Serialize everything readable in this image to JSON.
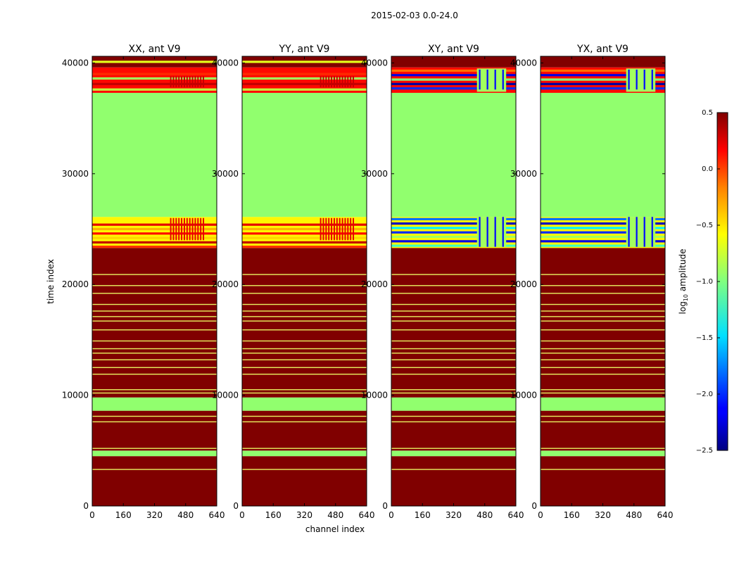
{
  "suptitle": "2015-02-03 0.0-24.0",
  "colors": {
    "dark_red": "#800000",
    "green": "#80ff80",
    "orange_red": "#ff4400",
    "yellow": "#e8f000",
    "blue": "#0018ff",
    "dark_blue": "#000080",
    "cyan": "#40ffc8"
  },
  "chart_data": {
    "type": "heatmap",
    "panels": [
      {
        "title": "XX, ant V9",
        "kind": "auto"
      },
      {
        "title": "YY, ant V9",
        "kind": "auto"
      },
      {
        "title": "XY, ant V9",
        "kind": "cross"
      },
      {
        "title": "YX, ant V9",
        "kind": "cross"
      }
    ],
    "xlabel": "channel index",
    "ylabel": "time index",
    "xlim": [
      0,
      640
    ],
    "ylim": [
      0,
      40600
    ],
    "xticks": [
      0,
      160,
      320,
      480,
      640
    ],
    "yticks": [
      0,
      10000,
      20000,
      30000,
      40000
    ],
    "xtick_labels": [
      "0",
      "160",
      "320",
      "480",
      "640"
    ],
    "ytick_labels": [
      "0",
      "10000",
      "20000",
      "30000",
      "40000"
    ],
    "colorbar": {
      "label_prefix": "log",
      "label_sub": "10",
      "label_suffix": " amplitude",
      "vmin": -2.5,
      "vmax": 0.5,
      "ticks": [
        0.5,
        0.0,
        -0.5,
        -1.0,
        -1.5,
        -2.0,
        -2.5
      ],
      "tick_labels": [
        "0.5",
        "0.0",
        "−0.5",
        "−1.0",
        "−1.5",
        "−2.0",
        "−2.5"
      ],
      "colormap": "jet"
    },
    "base_bands": [
      {
        "from": 0,
        "to": 4500,
        "value": 0.5
      },
      {
        "from": 4500,
        "to": 5000,
        "value": -0.95
      },
      {
        "from": 5000,
        "to": 8600,
        "value": 0.5
      },
      {
        "from": 8600,
        "to": 9800,
        "value": -0.95
      },
      {
        "from": 9800,
        "to": 23300,
        "value": 0.5
      },
      {
        "from": 23300,
        "to": 26100,
        "value": -0.6
      },
      {
        "from": 26100,
        "to": 37300,
        "value": -0.95
      },
      {
        "from": 37300,
        "to": 39600,
        "value": 0.1
      },
      {
        "from": 39600,
        "to": 40600,
        "value": 0.5
      }
    ],
    "thin_lines_time": [
      3300,
      5200,
      7600,
      8100,
      10200,
      10500,
      11900,
      12500,
      13200,
      13800,
      14200,
      14900,
      15900,
      16700,
      17100,
      17600,
      18200,
      19200,
      19900,
      20900
    ],
    "auto_stripes": [
      {
        "t": 23400,
        "value": 0.0
      },
      {
        "t": 23800,
        "value": 0.3
      },
      {
        "t": 24200,
        "value": -0.5
      },
      {
        "t": 24600,
        "value": 0.1
      },
      {
        "t": 25000,
        "value": -0.4
      },
      {
        "t": 25400,
        "value": 0.2
      },
      {
        "t": 37600,
        "value": -0.8
      },
      {
        "t": 38100,
        "value": 0.3
      },
      {
        "t": 38600,
        "value": -0.9
      },
      {
        "t": 39000,
        "value": 0.0
      },
      {
        "t": 40100,
        "value": -0.7
      }
    ],
    "cross_stripes": [
      {
        "t": 23500,
        "value": -1.2
      },
      {
        "t": 23900,
        "value": -2.2
      },
      {
        "t": 24300,
        "value": -0.9
      },
      {
        "t": 24700,
        "value": -2.0
      },
      {
        "t": 25100,
        "value": -1.4
      },
      {
        "t": 25500,
        "value": -2.3
      },
      {
        "t": 25900,
        "value": -1.8
      },
      {
        "t": 37700,
        "value": -2.0
      },
      {
        "t": 38100,
        "value": -2.4
      },
      {
        "t": 38500,
        "value": -1.0
      },
      {
        "t": 38900,
        "value": -2.2
      },
      {
        "t": 39300,
        "value": -0.2
      }
    ],
    "auto_hot_channels": [
      400,
      580
    ],
    "cross_hot_channels": [
      440,
      590
    ]
  }
}
